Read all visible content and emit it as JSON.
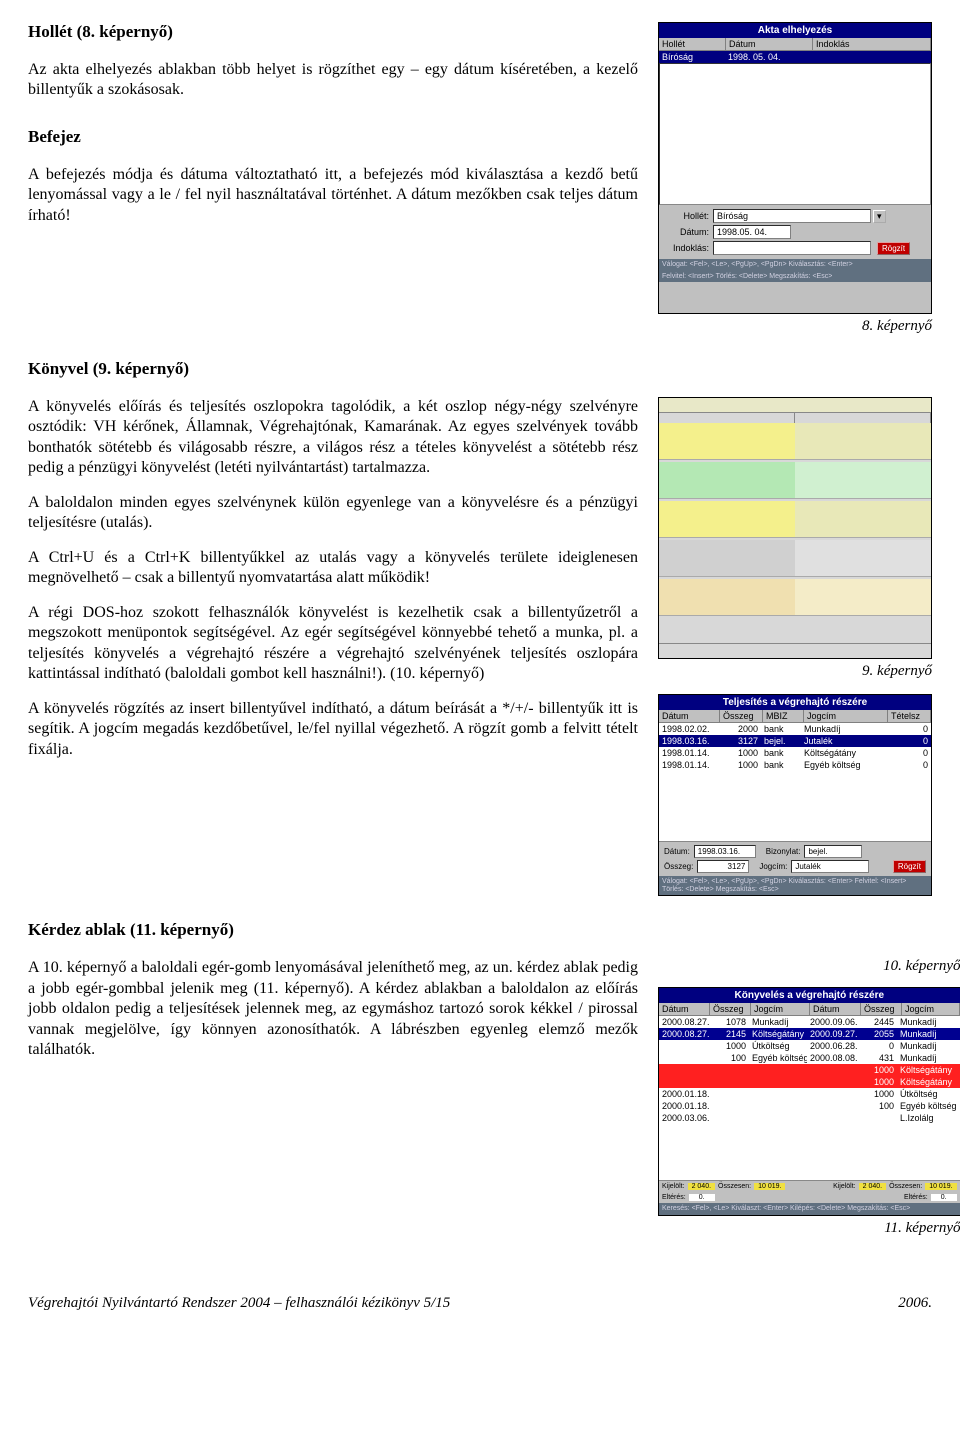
{
  "sections": {
    "hollet": {
      "title": "Hollét (8. képernyő)",
      "p1": "Az akta elhelyezés ablakban több helyet is rögzíthet egy – egy dátum kíséretében, a kezelő billentyűk a szokásosak."
    },
    "befejez": {
      "title": "Befejez",
      "p1": "A befejezés módja és dátuma változtatható itt, a befejezés mód kiválasztása a kezdő betű lenyomással vagy a le / fel nyil használtatával történhet. A dátum mezőkben csak teljes dátum írható!"
    },
    "konyvel": {
      "title": "Könyvel (9. képernyő)",
      "p1": "A könyvelés előírás és teljesítés oszlopokra tagolódik, a két oszlop négy-négy szelvényre osztódik: VH kérőnek, Államnak, Végrehajtónak, Kamarának. Az egyes szelvények tovább bonthatók sötétebb és világosabb részre, a világos rész a tételes könyvelést a sötétebb rész pedig a pénzügyi könyvelést (letéti nyilvántartást) tartalmazza.",
      "p2": "A baloldalon minden egyes szelvénynek külön egyenlege van a könyvelésre és a pénzügyi teljesítésre (utalás).",
      "p3": "A Ctrl+U és a Ctrl+K billentyűkkel az utalás vagy a könyvelés területe ideiglenesen megnövelhető – csak a billentyű nyomvatartása alatt működik!",
      "p4": "A régi DOS-hoz szokott felhasználók könyvelést is kezelhetik csak a billentyűzetről a megszokott menüpontok segítségével. Az egér segítségével könnyebbé tehető a munka, pl. a teljesítés könyvelés a végrehajtó részére a végrehajtó szelvényének teljesítés oszlopára kattintással indítható (baloldali gombot kell használni!). (10. képernyő)",
      "p5": "A könyvelés rögzítés az insert billentyűvel indítható, a dátum beírását a */+/- billentyűk itt is segítik. A jogcím megadás kezdőbetűvel, le/fel nyillal végezhető. A rögzít gomb a felvitt tételt fixálja."
    },
    "kerdez": {
      "title": "Kérdez ablak (11. képernyő)",
      "p1": "A 10. képernyő a baloldali egér-gomb lenyomásával jeleníthető meg, az un. kérdez ablak pedig a jobb egér-gombbal jelenik meg (11. képernyő). A kérdez ablakban a baloldalon az előírás jobb oldalon pedig a teljesítések jelennek meg, az egymáshoz tartozó sorok kékkel / pirossal vannak megjelölve, így könnyen azonosíthatók. A lábrészben egyenleg elemző mezők találhatók."
    }
  },
  "captions": {
    "c8": "8. képernyő",
    "c9": "9. képernyő",
    "c10": "10. képernyő",
    "c11": "11. képernyő"
  },
  "footer": {
    "left": "Végrehajtói Nyilvántartó Rendszer 2004 – felhasználói kézikönyv    5/15",
    "right": "2006."
  },
  "fig8": {
    "title": "Akta elhelyezés",
    "cols": [
      "Hollét",
      "Dátum",
      "Indoklás"
    ],
    "row": [
      "Bíróság",
      "1998. 05. 04.",
      ""
    ],
    "form": {
      "hollet_label": "Hollét:",
      "hollet_value": "Bíróság",
      "datum_label": "Dátum:",
      "datum_value": "1998.05. 04.",
      "indoklas_label": "Indoklás:",
      "indoklas_value": "",
      "button": "Rögzít"
    },
    "status1": "Válogat: <Fel>, <Le>, <PgUp>, <PgDn>    Kiválasztás: <Enter>",
    "status2": "Felvitel: <Insert>    Törlés: <Delete>    Megszakítás: <Esc>",
    "colors": {
      "frame": "#c0c0c0",
      "titlebar": "#000080",
      "status": "#5a6b82",
      "button": "#c01018"
    }
  },
  "fig9": {
    "colors": {
      "yellow": "#f4f08c",
      "green": "#8adf8a",
      "ltgreen": "#c8f0c8",
      "ltyellow": "#f8f8c8",
      "grey": "#d8d8d8",
      "dkgrey": "#b0b0b0",
      "peach": "#f0d8b8"
    }
  },
  "fig10": {
    "title": "Teljesítés a végrehajtó részére",
    "cols": [
      "Dátum",
      "Összeg",
      "MBIZ",
      "Jogcím",
      "Tételsz"
    ],
    "rows": [
      [
        "1998.02.02.",
        "2000",
        "bank",
        "Munkadíj",
        "0"
      ],
      [
        "1998.03.16.",
        "3127",
        "bejel.",
        "Jutalék",
        "0"
      ],
      [
        "1998.01.14.",
        "1000",
        "bank",
        "Költségátány",
        "0"
      ],
      [
        "1998.01.14.",
        "1000",
        "bank",
        "Egyéb költség",
        "0"
      ]
    ],
    "highlight_row": 1,
    "form": {
      "datum_label": "Dátum:",
      "datum_value": "1998.03.16.",
      "biz_label": "Bizonylat:",
      "biz_value": "bejel.",
      "osszeg_label": "Összeg:",
      "osszeg_value": "3127",
      "jogcim_label": "Jogcím:",
      "jogcim_value": "Jutalék",
      "button": "Rögzít"
    },
    "status": "Válogat: <Fel>, <Le>, <PgUp>, <PgDn>    Kiválasztás: <Enter>    Felvitel: <Insert>    Törlés: <Delete>    Megszakítás: <Esc>",
    "colors": {
      "highlight": "#000080",
      "button": "#c01018"
    }
  },
  "fig11": {
    "title": "Könyvelés a végrehajtó részére",
    "cols": [
      "Dátum",
      "Összeg",
      "Jogcím",
      "Dátum",
      "Összeg",
      "Jogcím"
    ],
    "rows": [
      {
        "l": [
          "2000.08.27.",
          "1078",
          "Munkadíj"
        ],
        "r": [
          "2000.09.06.",
          "2445",
          "Munkadíj"
        ],
        "cls": ""
      },
      {
        "l": [
          "2000.08.27.",
          "2145",
          "Költségátány"
        ],
        "r": [
          "2000.09.27.",
          "2055",
          "Munkadíj"
        ],
        "cls": "bluerow"
      },
      {
        "l": [
          "",
          "1000",
          "Útköltség"
        ],
        "r": [
          "2000.06.28.",
          "0",
          "Munkadíj"
        ],
        "cls": ""
      },
      {
        "l": [
          "",
          "100",
          "Egyéb költség"
        ],
        "r": [
          "2000.08.08.",
          "431",
          "Munkadíj"
        ],
        "cls": ""
      },
      {
        "l": [
          "",
          "",
          ""
        ],
        "r": [
          "",
          "1000",
          "Költségátány"
        ],
        "cls": "redrow"
      },
      {
        "l": [
          "",
          "",
          ""
        ],
        "r": [
          "",
          "1000",
          "Költségátány"
        ],
        "cls": "redrow"
      },
      {
        "l": [
          "2000.01.18.",
          "",
          ""
        ],
        "r": [
          "",
          "1000",
          "Útköltség"
        ],
        "cls": ""
      },
      {
        "l": [
          "2000.01.18.",
          "",
          ""
        ],
        "r": [
          "",
          "100",
          "Egyéb költség"
        ],
        "cls": ""
      },
      {
        "l": [
          "2000.03.06.",
          "",
          ""
        ],
        "r": [
          "",
          "",
          "L.Izolálg"
        ],
        "cls": ""
      }
    ],
    "footer1": {
      "l1": "Kijelölt:",
      "v1": "2 040.",
      "l2": "Összesen:",
      "v2": "10 019.",
      "l3": "Kijelölt:",
      "v3": "2 040.",
      "l4": "Összesen:",
      "v4": "10 019."
    },
    "footer2": {
      "l1": "Eltérés:",
      "v1": "0.",
      "l2": "",
      "v2": "",
      "l3": "Eltérés:",
      "v3": "0."
    },
    "status": "Keresés: <Fel>, <Le>   Kiválaszt: <Enter>   Kilépés: <Delete>   Megszakítás: <Esc>",
    "colors": {
      "blue": "#000090",
      "red": "#ff2020",
      "sum": "#f0e040"
    }
  }
}
